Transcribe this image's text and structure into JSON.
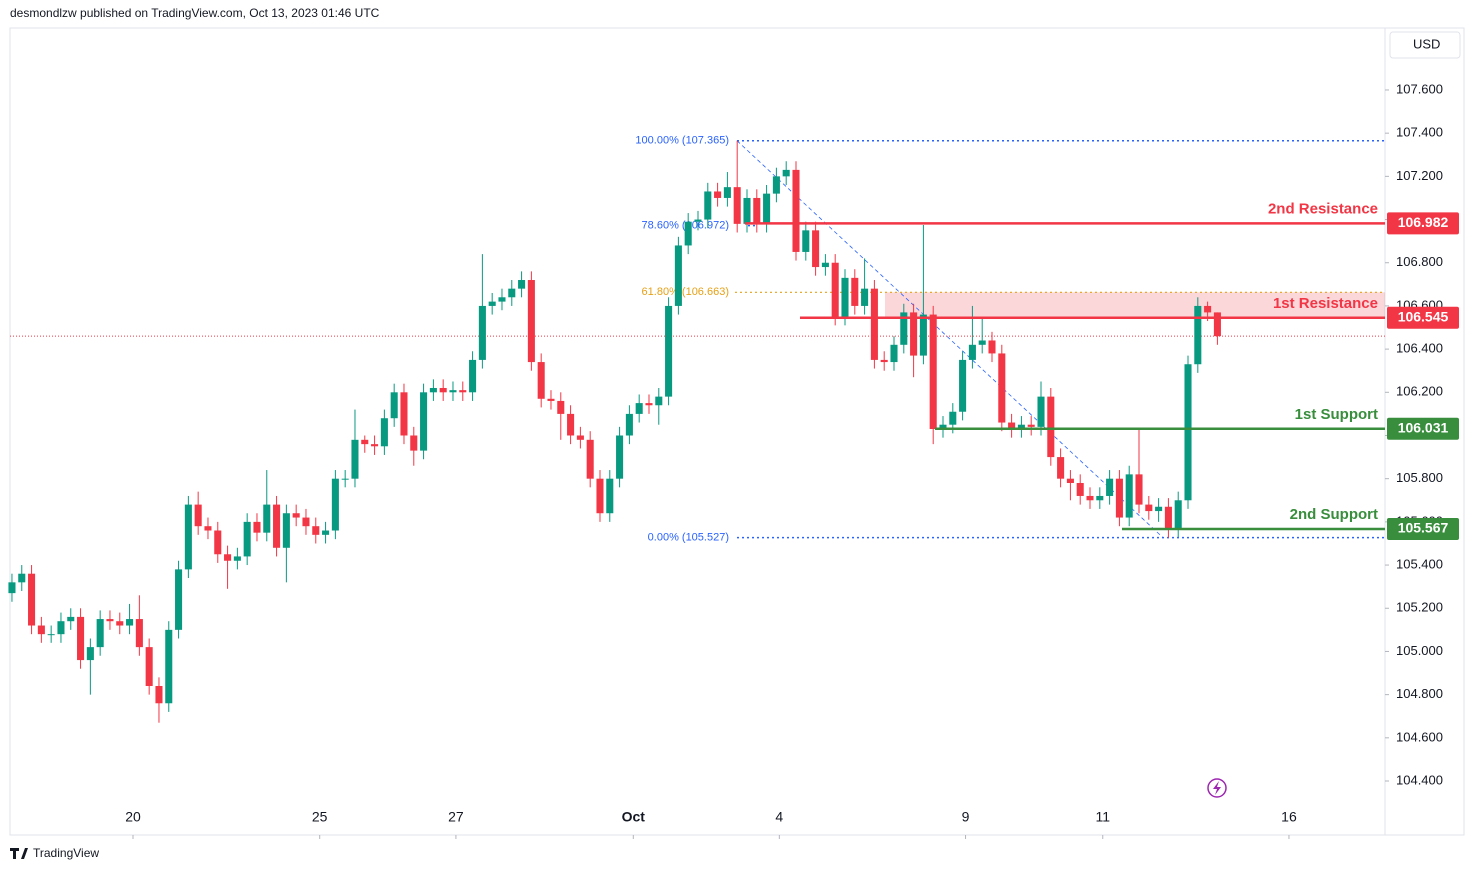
{
  "header": "desmondlzw published on TradingView.com, Oct 13, 2023 01:46 UTC",
  "footer": "TradingView",
  "chart_data": {
    "type": "candlestick",
    "currency": "USD",
    "up_color": "#089981",
    "down_color": "#f23645",
    "open": [
      105.27,
      105.32,
      105.36,
      105.12,
      105.08,
      105.08,
      105.14,
      105.16,
      104.96,
      105.02,
      105.15,
      105.14,
      105.12,
      105.15,
      105.02,
      104.84,
      104.76,
      105.1,
      105.38,
      105.68,
      105.58,
      105.56,
      105.45,
      105.42,
      105.44,
      105.6,
      105.55,
      105.68,
      105.48,
      105.64,
      105.62,
      105.58,
      105.54,
      105.56,
      105.8,
      105.8,
      105.98,
      105.96,
      105.95,
      106.08,
      106.2,
      106.0,
      105.93,
      106.2,
      106.22,
      106.2,
      106.21,
      106.2,
      106.35,
      106.6,
      106.62,
      106.64,
      106.68,
      106.72,
      106.34,
      106.17,
      106.16,
      106.1,
      106.0,
      105.98,
      105.8,
      105.64,
      105.8,
      106.0,
      106.1,
      106.15,
      106.14,
      106.18,
      106.6,
      106.88,
      106.99,
      107.0,
      107.13,
      107.1,
      107.15,
      106.98,
      107.1,
      106.98,
      107.12,
      107.2,
      107.23,
      106.85,
      106.95,
      106.78,
      106.8,
      106.55,
      106.73,
      106.6,
      106.68,
      106.35,
      106.34,
      106.42,
      106.57,
      106.37,
      106.56,
      106.03,
      106.05,
      106.11,
      106.35,
      106.42,
      106.44,
      106.38,
      106.06,
      106.03,
      106.05,
      106.04,
      106.18,
      105.9,
      105.8,
      105.78,
      105.72,
      105.7,
      105.72,
      105.8,
      105.62,
      105.82,
      105.68,
      105.65,
      105.67,
      105.57,
      105.7,
      106.33,
      106.6,
      106.57
    ],
    "high": [
      105.36,
      105.4,
      105.4,
      105.16,
      105.12,
      105.18,
      105.2,
      105.2,
      105.06,
      105.19,
      105.19,
      105.18,
      105.22,
      105.26,
      105.06,
      104.88,
      105.14,
      105.42,
      105.72,
      105.74,
      105.62,
      105.6,
      105.49,
      105.48,
      105.64,
      105.64,
      105.84,
      105.72,
      105.68,
      105.68,
      105.66,
      105.62,
      105.6,
      105.84,
      105.84,
      106.12,
      106.0,
      106.0,
      106.12,
      106.24,
      106.24,
      106.04,
      106.24,
      106.26,
      106.26,
      106.25,
      106.25,
      106.39,
      106.84,
      106.66,
      106.68,
      106.72,
      106.76,
      106.76,
      106.38,
      106.21,
      106.2,
      106.14,
      106.04,
      106.02,
      105.84,
      105.84,
      106.04,
      106.14,
      106.19,
      106.19,
      106.22,
      106.64,
      106.92,
      107.03,
      107.04,
      107.17,
      107.17,
      107.22,
      107.365,
      107.14,
      107.14,
      107.16,
      107.24,
      107.27,
      107.27,
      106.99,
      106.99,
      106.84,
      106.84,
      106.77,
      106.77,
      106.82,
      106.72,
      106.39,
      106.46,
      106.61,
      106.61,
      106.975,
      106.6,
      106.09,
      106.15,
      106.39,
      106.6,
      106.55,
      106.48,
      106.42,
      106.1,
      106.09,
      106.09,
      106.25,
      106.22,
      105.94,
      105.84,
      105.82,
      105.76,
      105.76,
      105.84,
      105.84,
      105.86,
      106.03,
      105.72,
      105.71,
      105.71,
      105.74,
      106.37,
      106.64,
      106.62,
      106.57
    ],
    "low": [
      105.23,
      105.28,
      105.08,
      105.04,
      105.04,
      105.04,
      105.1,
      104.92,
      104.8,
      104.98,
      105.1,
      105.08,
      105.08,
      104.98,
      104.8,
      104.67,
      104.72,
      105.06,
      105.34,
      105.54,
      105.52,
      105.41,
      105.29,
      105.38,
      105.4,
      105.51,
      105.51,
      105.44,
      105.32,
      105.58,
      105.54,
      105.5,
      105.5,
      105.52,
      105.76,
      105.76,
      105.92,
      105.91,
      105.91,
      106.04,
      105.96,
      105.86,
      105.89,
      106.16,
      106.16,
      106.16,
      106.16,
      106.16,
      106.31,
      106.56,
      106.58,
      106.6,
      106.64,
      106.3,
      106.13,
      106.12,
      105.98,
      105.96,
      105.94,
      105.76,
      105.6,
      105.6,
      105.76,
      105.96,
      106.06,
      106.1,
      106.05,
      106.14,
      106.56,
      106.84,
      106.95,
      106.96,
      107.06,
      107.06,
      106.94,
      106.94,
      106.94,
      106.94,
      107.08,
      107.16,
      106.81,
      106.81,
      106.74,
      106.74,
      106.51,
      106.51,
      106.56,
      106.56,
      106.31,
      106.3,
      106.3,
      106.38,
      106.27,
      106.33,
      105.96,
      105.99,
      106.01,
      106.07,
      106.31,
      106.38,
      106.34,
      106.02,
      105.99,
      105.99,
      106.0,
      106.0,
      105.86,
      105.76,
      105.7,
      105.68,
      105.66,
      105.66,
      105.68,
      105.58,
      105.58,
      105.64,
      105.61,
      105.6,
      105.527,
      105.53,
      105.66,
      106.29,
      106.53,
      106.42
    ],
    "close": [
      105.32,
      105.36,
      105.12,
      105.08,
      105.08,
      105.14,
      105.16,
      104.96,
      105.02,
      105.15,
      105.14,
      105.12,
      105.15,
      105.02,
      104.84,
      104.76,
      105.1,
      105.38,
      105.68,
      105.58,
      105.56,
      105.45,
      105.42,
      105.44,
      105.6,
      105.55,
      105.68,
      105.48,
      105.64,
      105.62,
      105.58,
      105.54,
      105.56,
      105.8,
      105.8,
      105.98,
      105.96,
      105.95,
      106.08,
      106.2,
      106.0,
      105.93,
      106.2,
      106.22,
      106.2,
      106.21,
      106.2,
      106.35,
      106.6,
      106.62,
      106.64,
      106.68,
      106.72,
      106.34,
      106.17,
      106.16,
      106.1,
      106.0,
      105.98,
      105.8,
      105.64,
      105.8,
      106.0,
      106.1,
      106.15,
      106.14,
      106.18,
      106.6,
      106.88,
      106.99,
      107.0,
      107.13,
      107.1,
      107.15,
      106.98,
      107.1,
      106.98,
      107.12,
      107.2,
      107.23,
      106.85,
      106.95,
      106.78,
      106.8,
      106.55,
      106.73,
      106.6,
      106.68,
      106.35,
      106.34,
      106.42,
      106.57,
      106.37,
      106.56,
      106.03,
      106.05,
      106.11,
      106.35,
      106.42,
      106.44,
      106.38,
      106.06,
      106.03,
      106.05,
      106.04,
      106.18,
      105.9,
      105.8,
      105.78,
      105.72,
      105.7,
      105.72,
      105.8,
      105.62,
      105.82,
      105.68,
      105.65,
      105.67,
      105.57,
      105.7,
      106.33,
      106.6,
      106.57,
      106.46
    ],
    "xlim": [
      -0.2,
      140.1
    ],
    "xticks": [
      {
        "value": 12.35,
        "label": "20"
      },
      {
        "value": 31.4,
        "label": "25"
      },
      {
        "value": 45.3,
        "label": "27"
      },
      {
        "value": 63.4,
        "label": "Oct"
      },
      {
        "value": 78.3,
        "label": "4"
      },
      {
        "value": 97.3,
        "label": "9"
      },
      {
        "value": 111.3,
        "label": "11"
      },
      {
        "value": 130.3,
        "label": "16"
      }
    ],
    "ylim": [
      104.15,
      107.887
    ],
    "yticks": [
      {
        "value": 104.4,
        "label": "104.400"
      },
      {
        "value": 104.6,
        "label": "104.600"
      },
      {
        "value": 104.8,
        "label": "104.800"
      },
      {
        "value": 105.0,
        "label": "105.000"
      },
      {
        "value": 105.2,
        "label": "105.200"
      },
      {
        "value": 105.4,
        "label": "105.400"
      },
      {
        "value": 105.6,
        "label": "105.600"
      },
      {
        "value": 105.8,
        "label": "105.800"
      },
      {
        "value": 106.0,
        "label": "106.000"
      },
      {
        "value": 106.2,
        "label": "106.200"
      },
      {
        "value": 106.4,
        "label": "106.400"
      },
      {
        "value": 106.6,
        "label": "106.600"
      },
      {
        "value": 106.8,
        "label": "106.800"
      },
      {
        "value": 107.0,
        "label": "107.000"
      },
      {
        "value": 107.2,
        "label": "107.200"
      },
      {
        "value": 107.4,
        "label": "107.400"
      },
      {
        "value": 107.6,
        "label": "107.600"
      }
    ],
    "levels": [
      {
        "name": "2nd Resistance",
        "value": 106.982,
        "color": "#f23645"
      },
      {
        "name": "1st Resistance",
        "value": 106.545,
        "color": "#f23645"
      },
      {
        "name": "1st Support",
        "value": 106.031,
        "color": "#388e3c"
      },
      {
        "name": "2nd Support",
        "value": 105.567,
        "color": "#388e3c"
      }
    ],
    "fib": [
      {
        "label": "100.00% (107.365)",
        "value": 107.365,
        "color": "#2962ff"
      },
      {
        "label": "78.60% (106.972)",
        "value": 106.972,
        "color": "#2962ff"
      },
      {
        "label": "61.80% (106.663)",
        "value": 106.663,
        "color": "#e6a117"
      },
      {
        "label": "0.00% (105.527)",
        "value": 105.527,
        "color": "#2962ff"
      }
    ]
  }
}
